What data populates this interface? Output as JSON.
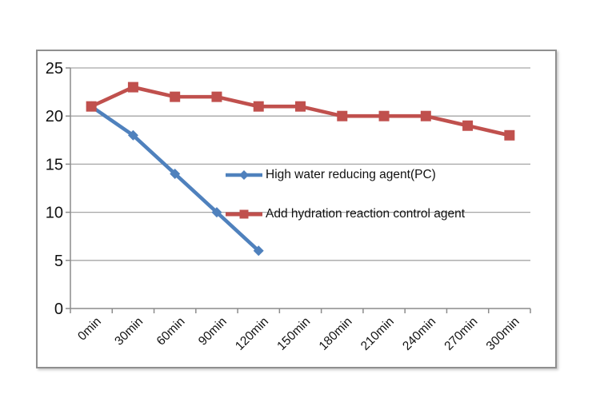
{
  "chart_data": {
    "type": "line",
    "title": "",
    "xlabel": "",
    "ylabel": "",
    "categories": [
      "0min",
      "30min",
      "60min",
      "90min",
      "120min",
      "150min",
      "180min",
      "210min",
      "240min",
      "270min",
      "300min"
    ],
    "series": [
      {
        "name": "High water reducing agent(PC)",
        "marker": "diamond",
        "color": "#4f81bd",
        "values": [
          21,
          18,
          14,
          10,
          6
        ]
      },
      {
        "name": "Add hydration reaction control agent",
        "marker": "square",
        "color": "#c0504d",
        "values": [
          21,
          23,
          22,
          22,
          21,
          21,
          20,
          20,
          20,
          19,
          18
        ]
      }
    ],
    "ylim": [
      0,
      25
    ],
    "ytick_step": 5,
    "yticks": [
      0,
      5,
      10,
      15,
      20,
      25
    ],
    "grid": true,
    "legend_position": "inside-plot"
  },
  "colors": {
    "background": "#ffffff",
    "frame_border": "#8f8f8f",
    "gridline": "#a6a6a6",
    "axis": "#8c8c8c",
    "text": "#111111",
    "series_blue": "#4f81bd",
    "series_red": "#c0504d"
  }
}
